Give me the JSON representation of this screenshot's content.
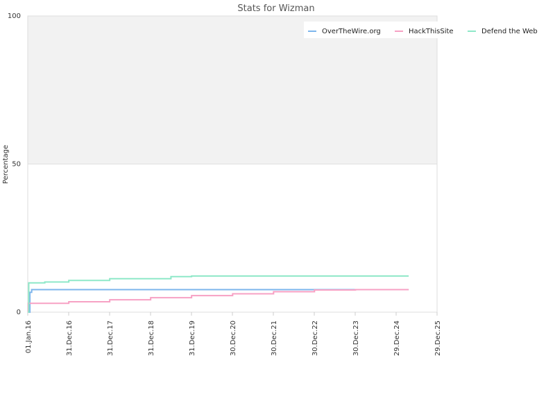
{
  "chart_data": {
    "type": "line",
    "title": "Stats for Wizman",
    "ylabel": "Percentage",
    "xlabel": "",
    "ylim": [
      0,
      100
    ],
    "xlim": [
      "2016-01-01",
      "2025-12-29"
    ],
    "y_ticks": [
      "0",
      "50",
      "100"
    ],
    "x_ticks": [
      {
        "label": "01.Jan.16",
        "date": "2016-01-01"
      },
      {
        "label": "31.Dec.16",
        "date": "2016-12-31"
      },
      {
        "label": "31.Dec.17",
        "date": "2017-12-31"
      },
      {
        "label": "31.Dec.18",
        "date": "2018-12-31"
      },
      {
        "label": "31.Dec.19",
        "date": "2019-12-31"
      },
      {
        "label": "30.Dec.20",
        "date": "2020-12-30"
      },
      {
        "label": "30.Dec.21",
        "date": "2021-12-30"
      },
      {
        "label": "30.Dec.22",
        "date": "2022-12-30"
      },
      {
        "label": "30.Dec.23",
        "date": "2023-12-30"
      },
      {
        "label": "29.Dec.24",
        "date": "2024-12-29"
      },
      {
        "label": "29.Dec.25",
        "date": "2025-12-29"
      }
    ],
    "bands": [
      {
        "from": 50,
        "to": 100,
        "color": "#f2f2f2"
      }
    ],
    "legend_position": "top-right",
    "series": [
      {
        "name": "OverTheWire.org",
        "color": "#7cb5ec",
        "x": [
          "2016-01-01",
          "2016-01-20",
          "2016-02-05",
          "2025-04-20"
        ],
        "y": [
          0,
          6.7,
          7.6,
          7.6
        ]
      },
      {
        "name": "HackThisSite",
        "color": "#f7a1c4",
        "x": [
          "2016-01-01",
          "2016-01-05",
          "2017-01-01",
          "2018-01-01",
          "2019-01-01",
          "2020-01-01",
          "2021-01-01",
          "2022-01-01",
          "2023-01-01",
          "2024-01-01",
          "2025-04-20"
        ],
        "y": [
          0,
          3.0,
          3.5,
          4.2,
          4.9,
          5.6,
          6.2,
          6.9,
          7.5,
          7.6,
          7.6
        ]
      },
      {
        "name": "Defend the Web",
        "color": "#90ed7d",
        "stroke_color": "#8ee8c8",
        "x": [
          "2016-01-01",
          "2016-01-10",
          "2016-06-01",
          "2017-01-01",
          "2018-01-01",
          "2019-07-01",
          "2020-01-01",
          "2022-01-01",
          "2025-04-20"
        ],
        "y": [
          0,
          9.9,
          10.2,
          10.7,
          11.3,
          12.0,
          12.2,
          12.2,
          12.2
        ]
      }
    ]
  }
}
